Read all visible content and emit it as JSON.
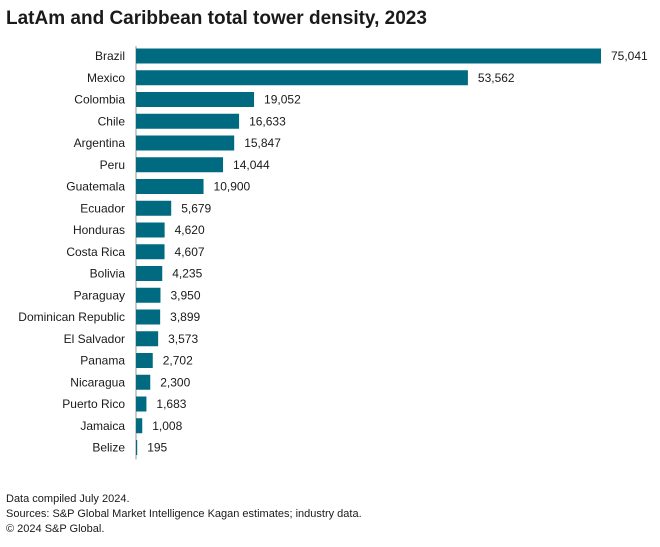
{
  "chart_data": {
    "type": "bar",
    "orientation": "horizontal",
    "title": "LatAm and Caribbean total tower density, 2023",
    "categories": [
      "Brazil",
      "Mexico",
      "Colombia",
      "Chile",
      "Argentina",
      "Peru",
      "Guatemala",
      "Ecuador",
      "Honduras",
      "Costa Rica",
      "Bolivia",
      "Paraguay",
      "Dominican Republic",
      "El Salvador",
      "Panama",
      "Nicaragua",
      "Puerto Rico",
      "Jamaica",
      "Belize"
    ],
    "values": [
      75041,
      53562,
      19052,
      16633,
      15847,
      14044,
      10900,
      5679,
      4620,
      4607,
      4235,
      3950,
      3899,
      3573,
      2702,
      2300,
      1683,
      1008,
      195
    ],
    "value_labels": [
      "75,041",
      "53,562",
      "19,052",
      "16,633",
      "15,847",
      "14,044",
      "10,900",
      "5,679",
      "4,620",
      "4,607",
      "4,235",
      "3,950",
      "3,899",
      "3,573",
      "2,702",
      "2,300",
      "1,683",
      "1,008",
      "195"
    ],
    "bar_color": "#006a80",
    "xlim": [
      0,
      75041
    ],
    "grid": false,
    "legend": "none"
  },
  "footer": {
    "note": "Data compiled July 2024.",
    "sources": "Sources: S&P Global Market Intelligence Kagan estimates; industry data.",
    "copyright": "© 2024 S&P Global."
  }
}
